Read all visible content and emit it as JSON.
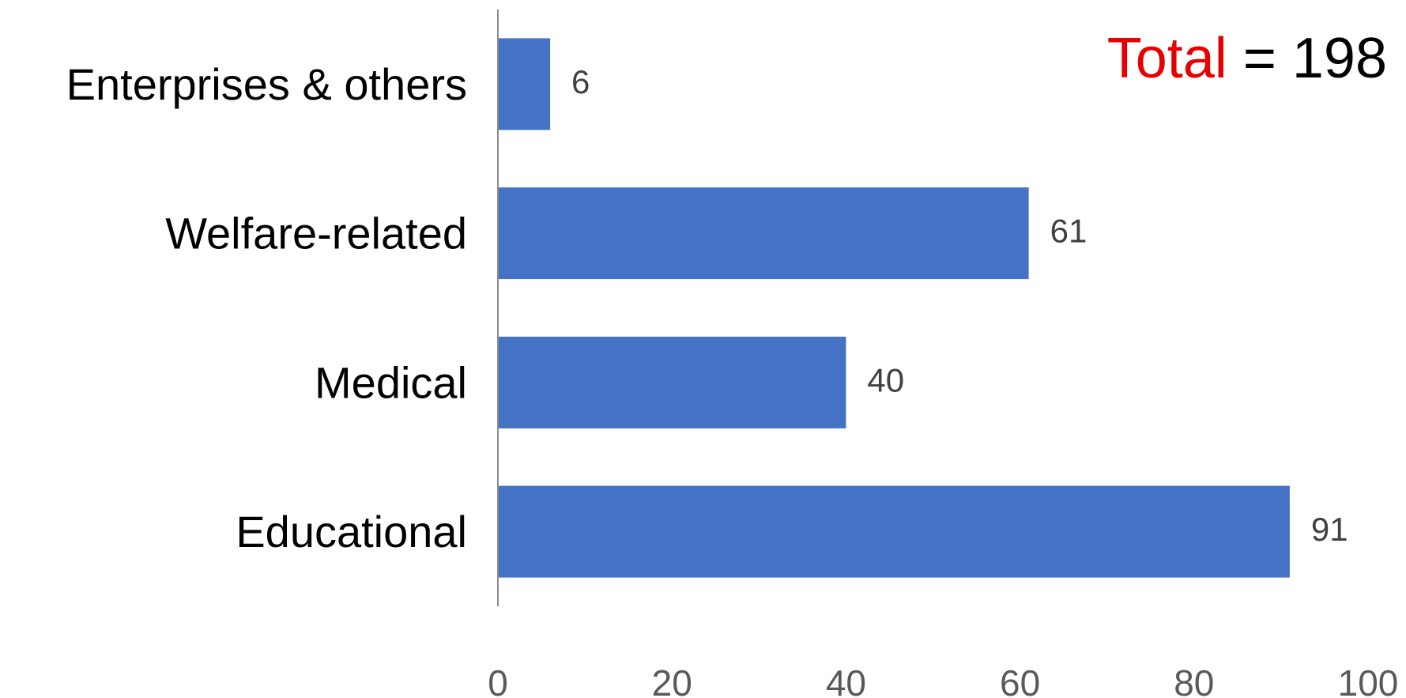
{
  "chart_data": {
    "type": "bar",
    "orientation": "horizontal",
    "categories": [
      "Enterprises & others",
      "Welfare-related",
      "Medical",
      "Educational"
    ],
    "values": [
      6,
      61,
      40,
      91
    ],
    "data_labels": [
      "6",
      "61",
      "40",
      "91"
    ],
    "xlim": [
      0,
      100
    ],
    "x_ticks": [
      "0",
      "20",
      "40",
      "60",
      "80",
      "100"
    ],
    "grid": false,
    "legend": "none",
    "bar_color": "#4472C4",
    "annotation": {
      "highlight": "Total",
      "rest": " = 198",
      "highlight_color": "#E60000",
      "rest_color": "#000000"
    }
  }
}
